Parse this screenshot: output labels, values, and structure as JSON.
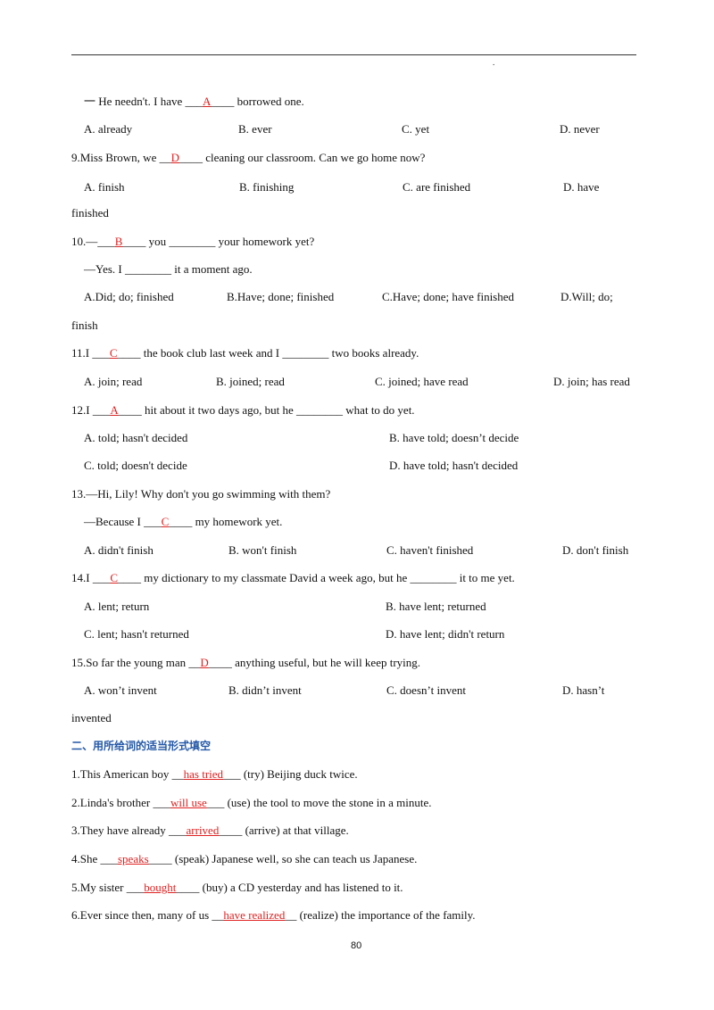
{
  "header": {
    "mark": "."
  },
  "lines": [
    {
      "before": "一 He needn't. I have ___",
      "answer": "A",
      "after": "____ borrowed one."
    },
    {
      "options": [
        "A. already",
        "B. ever",
        "C. yet",
        "D. never"
      ]
    },
    {
      "before": "9.Miss Brown, we __",
      "answer": "D",
      "after": "____ cleaning our classroom. Can we go home now?"
    },
    {
      "options": [
        "A. finish",
        "B. finishing",
        "C. are finished",
        "D. have"
      ]
    },
    {
      "text": "finished"
    },
    {
      "before": "10.—___",
      "answer": "B",
      "after": "____ you ________ your homework yet?"
    },
    {
      "text": "—Yes. I ________ it a moment ago."
    },
    {
      "options": [
        "A.Did; do; finished",
        "B.Have; done; finished",
        "C.Have; done; have finished",
        "D.Will; do;"
      ]
    },
    {
      "text": "finish"
    },
    {
      "before": "11.I ___",
      "answer": "C",
      "after": "____ the book club last week and I ________ two books already."
    },
    {
      "options": [
        "A. join; read",
        "B. joined; read",
        "C. joined; have read",
        "D. join; has read"
      ]
    },
    {
      "before": "12.I ___",
      "answer": "A",
      "after": "____ hit about it two days ago, but he ________ what to do yet."
    },
    {
      "options": [
        "A. told; hasn't decided",
        "B. have told; doesn’t decide"
      ]
    },
    {
      "options": [
        "C. told; doesn't decide",
        "D. have told; hasn't decided"
      ]
    },
    {
      "text": "13.—Hi, Lily! Why don't you go swimming with them?"
    },
    {
      "before": "—Because I ___",
      "answer": "C",
      "after": "____ my homework yet."
    },
    {
      "options": [
        "A. didn't finish",
        "B. won't finish",
        "C. haven't finished",
        "D. don't finish"
      ]
    },
    {
      "before": "14.I ___",
      "answer": "C",
      "after": "____ my dictionary to my classmate David a week ago, but he ________ it to me yet."
    },
    {
      "options": [
        "A. lent; return",
        "B. have lent; returned"
      ]
    },
    {
      "options": [
        "C. lent; hasn't returned",
        "D. have lent; didn't return"
      ]
    },
    {
      "before": "15.So far the young man __",
      "answer": "D",
      "after": "____ anything useful, but he will keep trying."
    },
    {
      "options": [
        "A. won’t invent",
        "B. didn’t invent",
        "C. doesn’t invent",
        "D. hasn’t"
      ]
    },
    {
      "text": "invented"
    },
    {
      "heading": "二、用所给词的适当形式填空"
    },
    {
      "before": "1.This American boy __",
      "answer": "has tried",
      "after": "___ (try) Beijing duck twice."
    },
    {
      "before": "2.Linda's brother ___",
      "answer": "will use",
      "after": "___ (use) the tool to move the stone in a minute."
    },
    {
      "before": "3.They have already ___",
      "answer": "arrived",
      "after": "____ (arrive) at that village."
    },
    {
      "before": "4.She ___",
      "answer": "speaks",
      "after": "____ (speak) Japanese well, so she can teach us Japanese."
    },
    {
      "before": "5.My sister ___",
      "answer": "bought",
      "after": "____ (buy) a CD yesterday and has listened to it."
    },
    {
      "before": "6.Ever since then, many of us __",
      "answer": "have realized",
      "after": "__ (realize) the importance of the family."
    }
  ],
  "footer": {
    "page_number": "80"
  }
}
